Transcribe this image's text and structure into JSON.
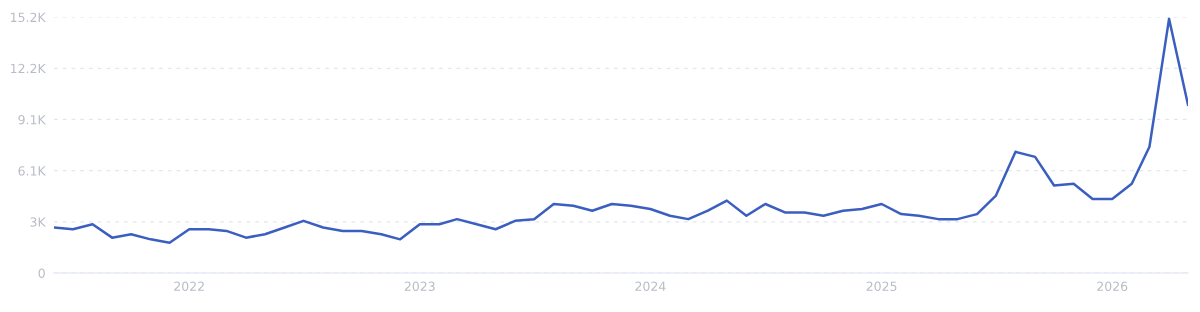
{
  "chart_data": {
    "type": "line",
    "x": [
      "2021-06",
      "2021-07",
      "2021-08",
      "2021-09",
      "2021-10",
      "2021-11",
      "2021-12",
      "2022-01",
      "2022-02",
      "2022-03",
      "2022-04",
      "2022-05",
      "2022-06",
      "2022-07",
      "2022-08",
      "2022-09",
      "2022-10",
      "2022-11",
      "2022-12",
      "2023-01",
      "2023-02",
      "2023-03",
      "2023-04",
      "2023-05",
      "2023-06",
      "2023-07",
      "2023-08",
      "2023-09",
      "2023-10",
      "2023-11",
      "2023-12",
      "2024-01",
      "2024-02",
      "2024-03",
      "2024-04",
      "2024-05",
      "2024-06",
      "2024-07",
      "2024-08",
      "2024-09",
      "2024-10",
      "2024-11",
      "2024-12",
      "2025-01",
      "2025-02",
      "2025-03",
      "2025-04",
      "2025-05",
      "2025-06",
      "2025-07",
      "2025-08",
      "2025-09",
      "2025-10",
      "2025-11",
      "2025-12",
      "2026-01",
      "2026-02",
      "2026-03",
      "2026-04",
      "2026-05"
    ],
    "series": [
      {
        "color": "#3b5fc0",
        "values": [
          2700,
          2600,
          2900,
          2100,
          2300,
          2000,
          1800,
          2600,
          2600,
          2500,
          2100,
          2300,
          2700,
          3100,
          2700,
          2500,
          2500,
          2300,
          2000,
          2900,
          2900,
          3200,
          2900,
          2600,
          3100,
          3200,
          4100,
          4000,
          3700,
          4100,
          4000,
          3800,
          3400,
          3200,
          3700,
          4300,
          3400,
          4100,
          3600,
          3600,
          3400,
          3700,
          3800,
          4100,
          3500,
          3400,
          3200,
          3200,
          3500,
          4600,
          7200,
          6900,
          5200,
          5300,
          4400,
          4400,
          5300,
          7500,
          15100,
          10000
        ]
      }
    ],
    "xlim": [
      "2021-06",
      "2026-05"
    ],
    "xticks": [
      {
        "value": "2022-01",
        "label": "2022"
      },
      {
        "value": "2023-01",
        "label": "2023"
      },
      {
        "value": "2024-01",
        "label": "2024"
      },
      {
        "value": "2025-01",
        "label": "2025"
      },
      {
        "value": "2026-01",
        "label": "2026"
      }
    ],
    "ylim": [
      0,
      15200
    ],
    "yticks": [
      0,
      {
        "value": 3040,
        "label": "3K"
      },
      {
        "value": 6080,
        "label": "6.1K"
      },
      {
        "value": 9120,
        "label": "9.1K"
      },
      {
        "value": 12160,
        "label": "12.2K"
      },
      {
        "value": 15200,
        "label": "15.2K"
      }
    ],
    "grid": "y",
    "marker": "none",
    "line_style": "solid"
  }
}
